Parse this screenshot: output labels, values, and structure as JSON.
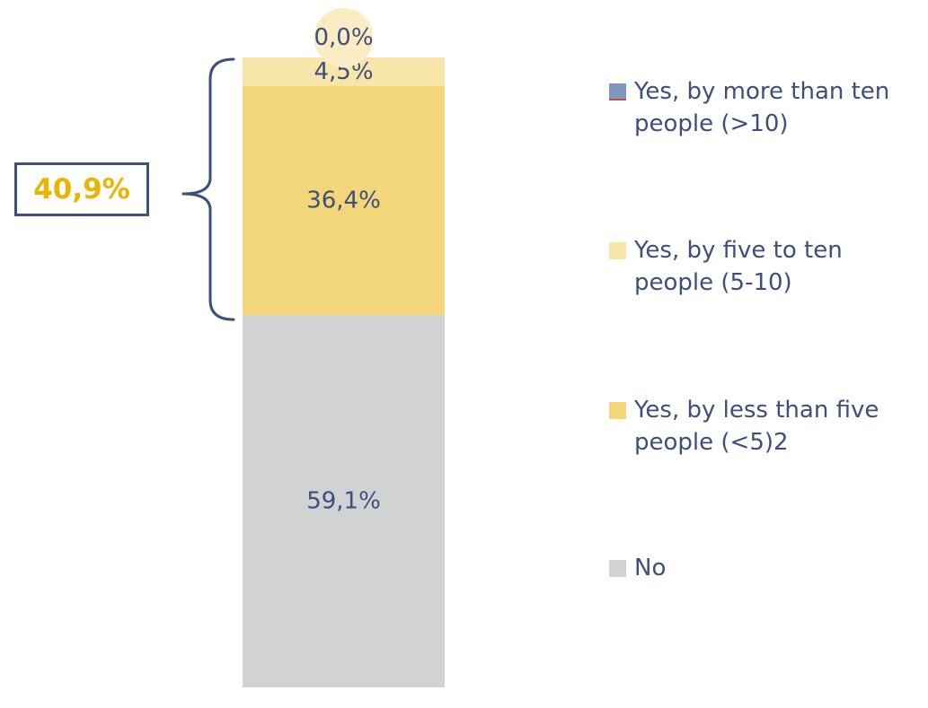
{
  "chart_data": {
    "type": "bar",
    "stacked": true,
    "categories": [
      ""
    ],
    "series": [
      {
        "name": "No",
        "values": [
          59.1
        ],
        "color": "#d1d2d4",
        "label": "59,1%"
      },
      {
        "name": "Yes, by less than five people (<5)2",
        "values": [
          36.4
        ],
        "color": "#f3d67a",
        "label": "36,4%"
      },
      {
        "name": "Yes, by five to ten people (5-10)",
        "values": [
          4.5
        ],
        "color": "#f8e5a9",
        "label": "4,5%"
      },
      {
        "name": "Yes, by more than ten people (>10)",
        "values": [
          0.0
        ],
        "color": "#7f96c0",
        "label": "0,0%"
      }
    ],
    "ylim": [
      0,
      100
    ],
    "grid": false,
    "legend_position": "right",
    "annotation": {
      "text": "40,9%",
      "text_color": "#e8b600",
      "border_color": "#3d4f7a",
      "brace_color": "#3d4f7a"
    },
    "zero_marker_color": "#fbecc4"
  },
  "legend": {
    "items": [
      {
        "label": "Yes, by more than ten people (>10)",
        "color": "#7f96c0",
        "edge": "#c0504d"
      },
      {
        "label": "Yes, by five to ten people (5-10)",
        "color": "#f8e5a9",
        "edge": ""
      },
      {
        "label": "Yes, by less than five people (<5)2",
        "color": "#f3d67a",
        "edge": ""
      },
      {
        "label": "No",
        "color": "#d1d2d4",
        "edge": ""
      }
    ]
  }
}
